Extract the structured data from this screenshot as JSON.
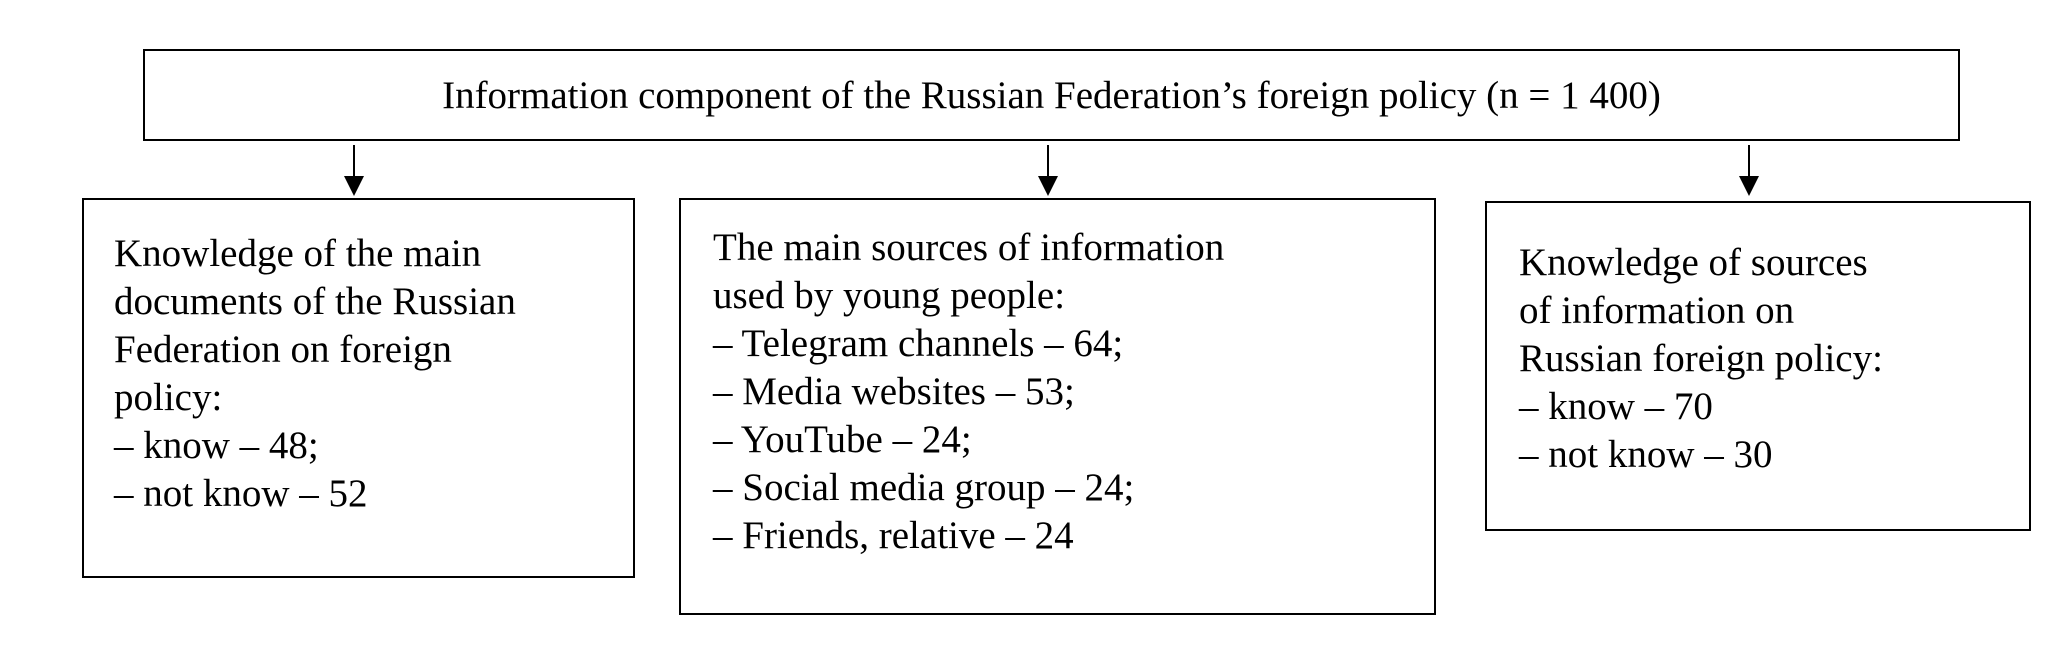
{
  "root": {
    "title": "Information component of the Russian Federation’s foreign policy (n = 1 400)"
  },
  "boxes": [
    {
      "lines": [
        "Knowledge of the main",
        "documents of the Russian",
        "Federation on foreign",
        "policy:",
        "– know – 48;",
        "– not know – 52"
      ]
    },
    {
      "lines": [
        "The main sources of information",
        "used by young people:",
        "– Telegram channels – 64;",
        "– Media websites – 53;",
        "– YouTube – 24;",
        "– Social media group – 24;",
        "– Friends, relative – 24"
      ]
    },
    {
      "lines": [
        "Knowledge of sources",
        "of information on",
        "Russian foreign policy:",
        "– know – 70",
        "– not know – 30"
      ]
    }
  ]
}
